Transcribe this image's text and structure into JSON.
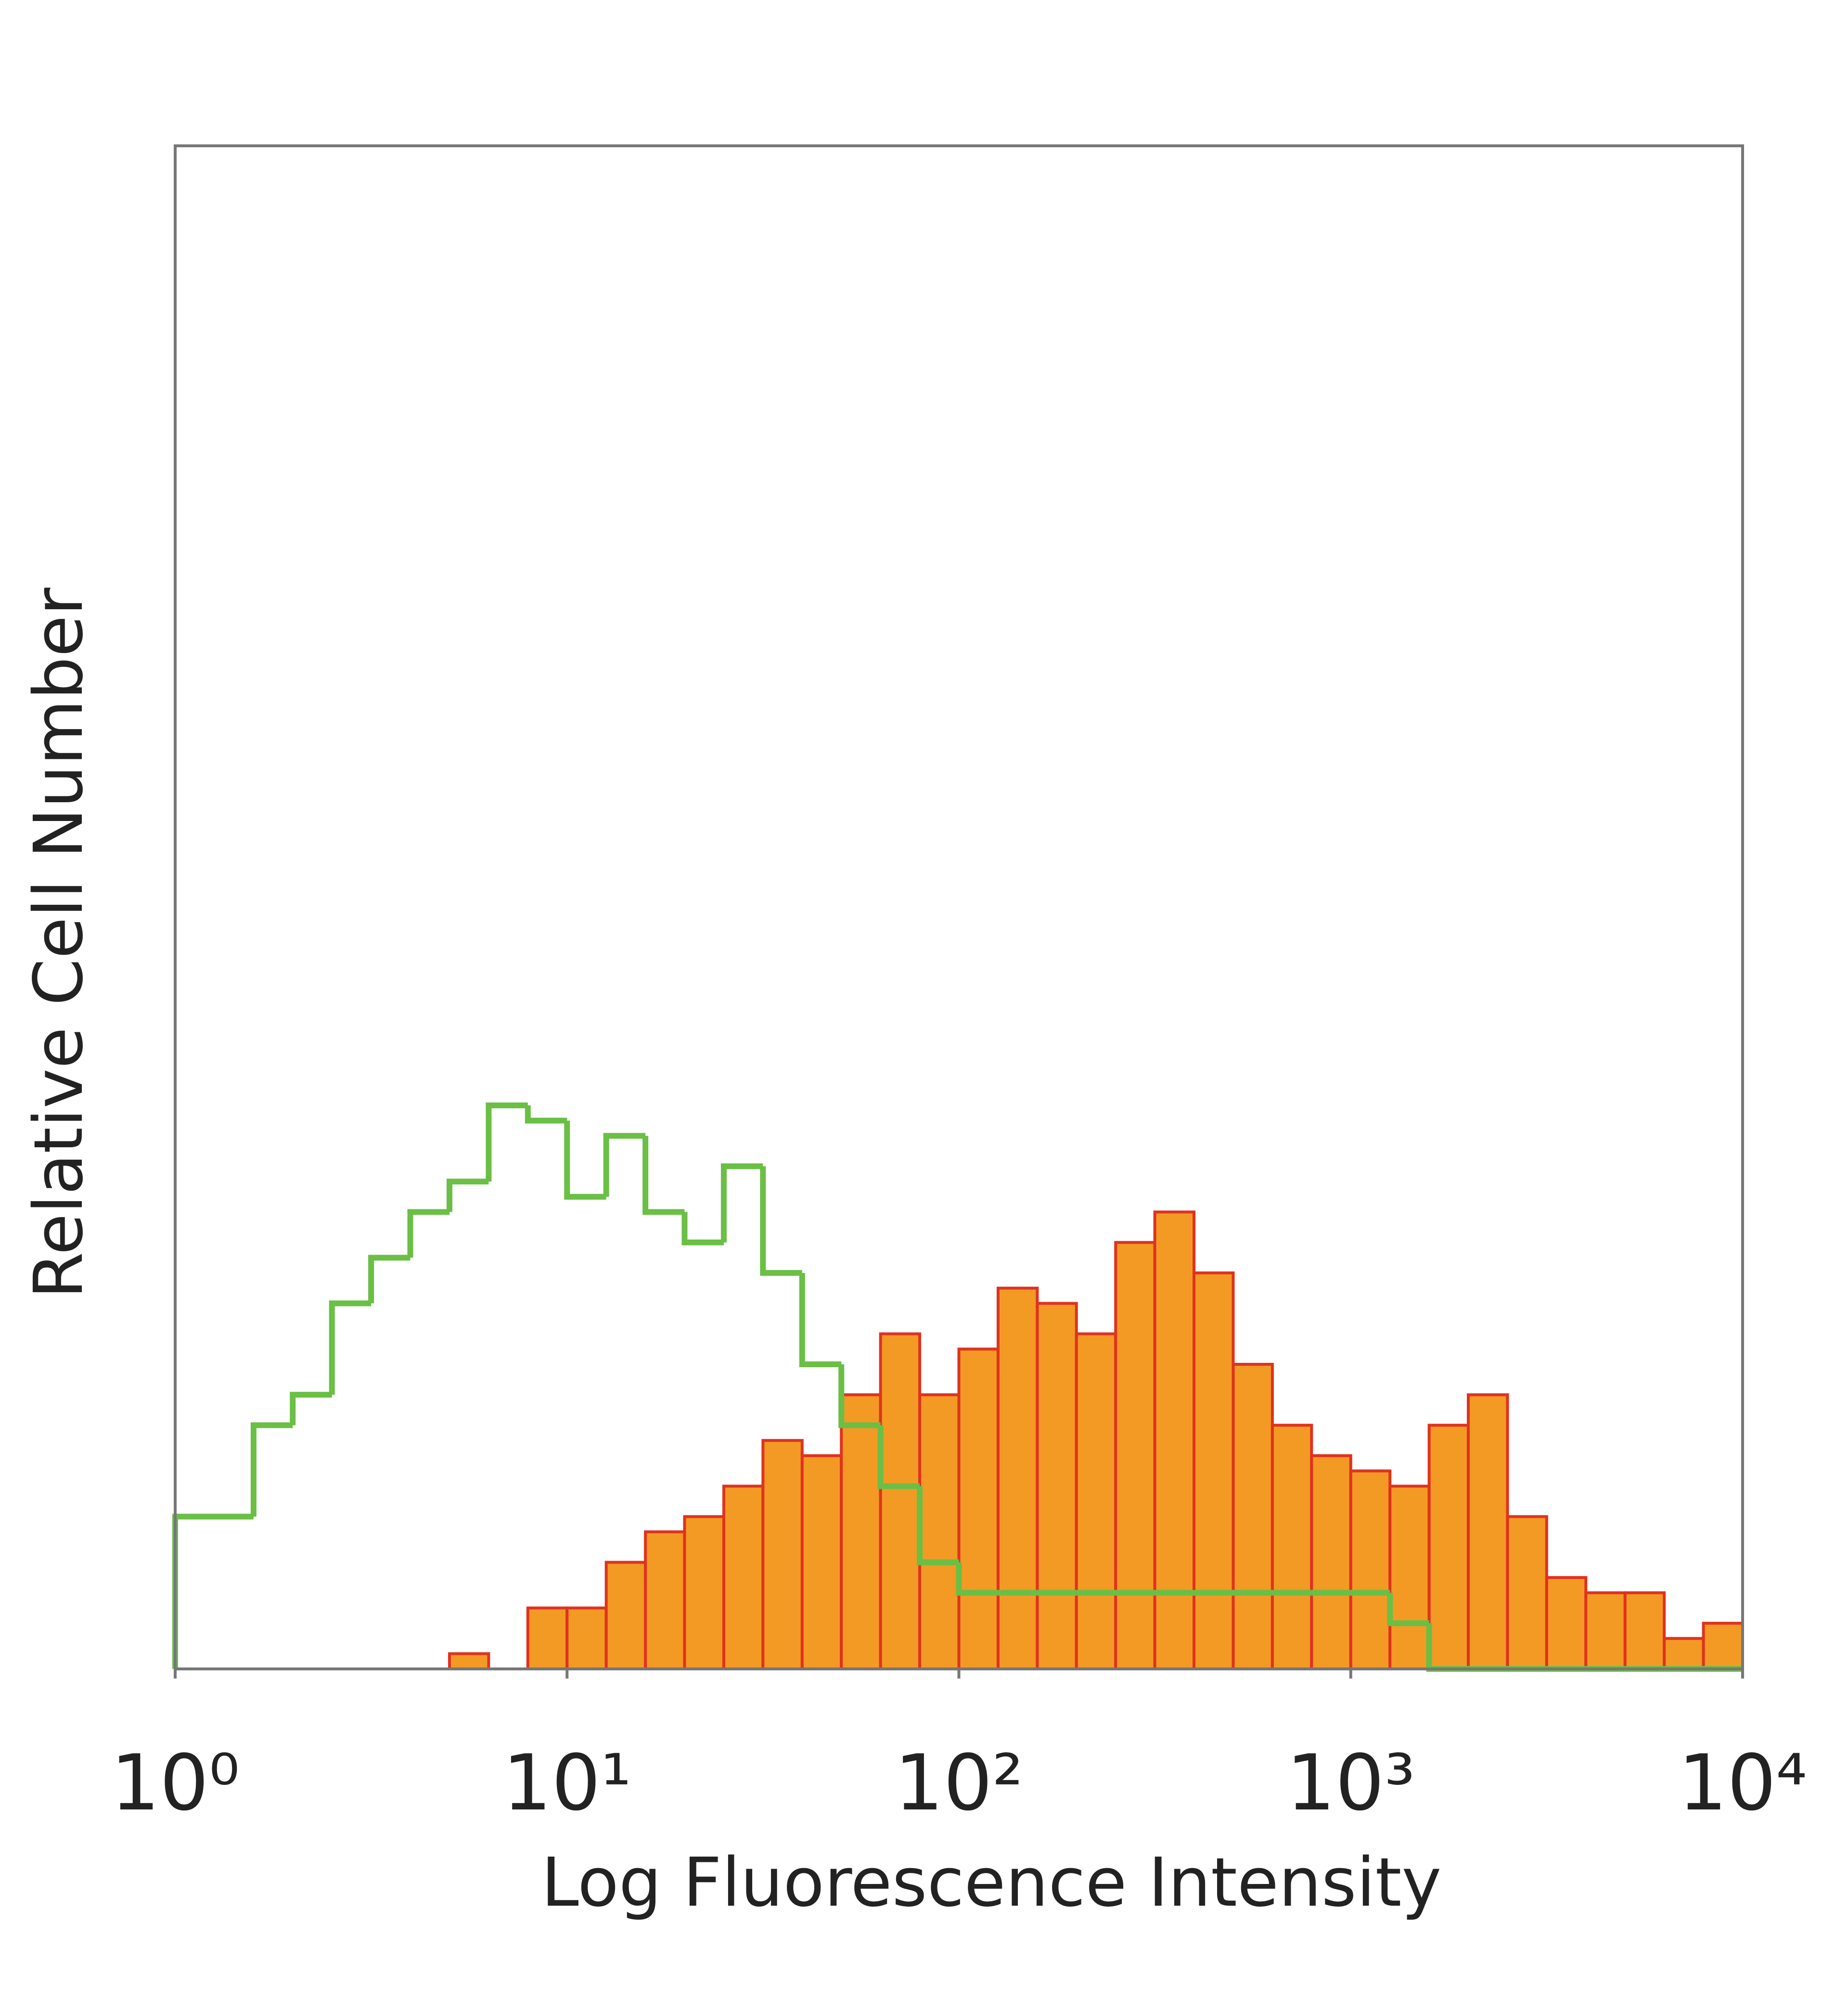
{
  "chart_data": {
    "type": "histogram",
    "xlabel": "Log Fluorescence Intensity",
    "ylabel": "Relative Cell Number",
    "xscale": "log",
    "xlim": [
      1,
      10000
    ],
    "ylim": [
      0,
      100
    ],
    "xticks": [
      {
        "value": 1,
        "label": "10⁰"
      },
      {
        "value": 10,
        "label": "10¹"
      },
      {
        "value": 100,
        "label": "10²"
      },
      {
        "value": 1000,
        "label": "10³"
      },
      {
        "value": 10000,
        "label": "10⁴"
      }
    ],
    "bins": [
      1,
      1.259,
      1.585,
      1.995,
      2.512,
      3.162,
      3.981,
      5.012,
      6.31,
      7.943,
      10,
      12.59,
      15.85,
      19.95,
      25.12,
      31.62,
      39.81,
      50.12,
      63.1,
      79.43,
      100,
      125.9,
      158.5,
      199.5,
      251.2,
      316.2,
      398.1,
      501.2,
      631,
      794.3,
      1000,
      1259,
      1585,
      1995,
      2512,
      3162,
      3981,
      5012,
      6310,
      7943,
      10000
    ],
    "series": [
      {
        "color": "#f39a25",
        "edgecolor": "#e0321e",
        "fill": true,
        "values": [
          0,
          0,
          0,
          0,
          0,
          0,
          0,
          1,
          0,
          4,
          4,
          7,
          9,
          10,
          12,
          15,
          14,
          18,
          22,
          18,
          21,
          25,
          24,
          22,
          28,
          30,
          26,
          20,
          16,
          14,
          13,
          12,
          16,
          18,
          10,
          6,
          5,
          5,
          2,
          3
        ]
      },
      {
        "color": "#6abf45",
        "fill": false,
        "values": [
          10,
          10,
          16,
          18,
          24,
          27,
          30,
          32,
          37,
          36,
          31,
          35,
          30,
          28,
          33,
          26,
          20,
          16,
          12,
          7,
          5,
          5,
          5,
          5,
          5,
          5,
          5,
          5,
          5,
          5,
          5,
          3,
          0,
          0,
          0,
          0,
          0,
          0,
          0,
          0
        ]
      }
    ]
  }
}
